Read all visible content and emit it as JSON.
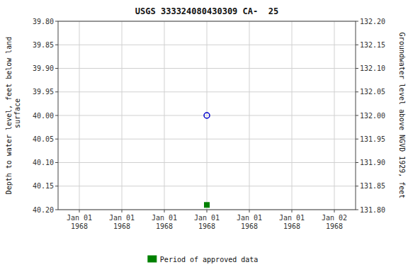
{
  "chart_data": {
    "type": "scatter",
    "title": "USGS 333324080430309 CA-  25",
    "y_label": "Depth to water level, feet below land\n surface",
    "y2_label": "Groundwater level above NGVD 1929, feet",
    "categories": [
      "Jan 01\n1968",
      "Jan 01\n1968",
      "Jan 01\n1968",
      "Jan 01\n1968",
      "Jan 01\n1968",
      "Jan 01\n1968",
      "Jan 02\n1968"
    ],
    "series": [
      {
        "color": "#0000cc",
        "marker": "open-circle",
        "values": [
          null,
          null,
          null,
          40.0,
          null,
          null,
          null
        ]
      },
      {
        "name": "Period of approved data",
        "color": "#008000",
        "marker": "square",
        "values": [
          null,
          null,
          null,
          40.19,
          null,
          null,
          null
        ]
      }
    ],
    "ylim": [
      40.2,
      39.8
    ],
    "yticks": [
      {
        "value": 39.8,
        "label": "39.80"
      },
      {
        "value": 39.85,
        "label": "39.85"
      },
      {
        "value": 39.9,
        "label": "39.90"
      },
      {
        "value": 39.95,
        "label": "39.95"
      },
      {
        "value": 40.0,
        "label": "40.00"
      },
      {
        "value": 40.05,
        "label": "40.05"
      },
      {
        "value": 40.1,
        "label": "40.10"
      },
      {
        "value": 40.15,
        "label": "40.15"
      },
      {
        "value": 40.2,
        "label": "40.20"
      }
    ],
    "y2lim": [
      131.8,
      132.2
    ],
    "y2ticks": [
      {
        "value": 131.8,
        "label": "131.80"
      },
      {
        "value": 131.85,
        "label": "131.85"
      },
      {
        "value": 131.9,
        "label": "131.90"
      },
      {
        "value": 131.95,
        "label": "131.95"
      },
      {
        "value": 132.0,
        "label": "132.00"
      },
      {
        "value": 132.05,
        "label": "132.05"
      },
      {
        "value": 132.1,
        "label": "132.10"
      },
      {
        "value": 132.15,
        "label": "132.15"
      },
      {
        "value": 132.2,
        "label": "132.20"
      }
    ],
    "grid": true,
    "legend": "bottom"
  }
}
